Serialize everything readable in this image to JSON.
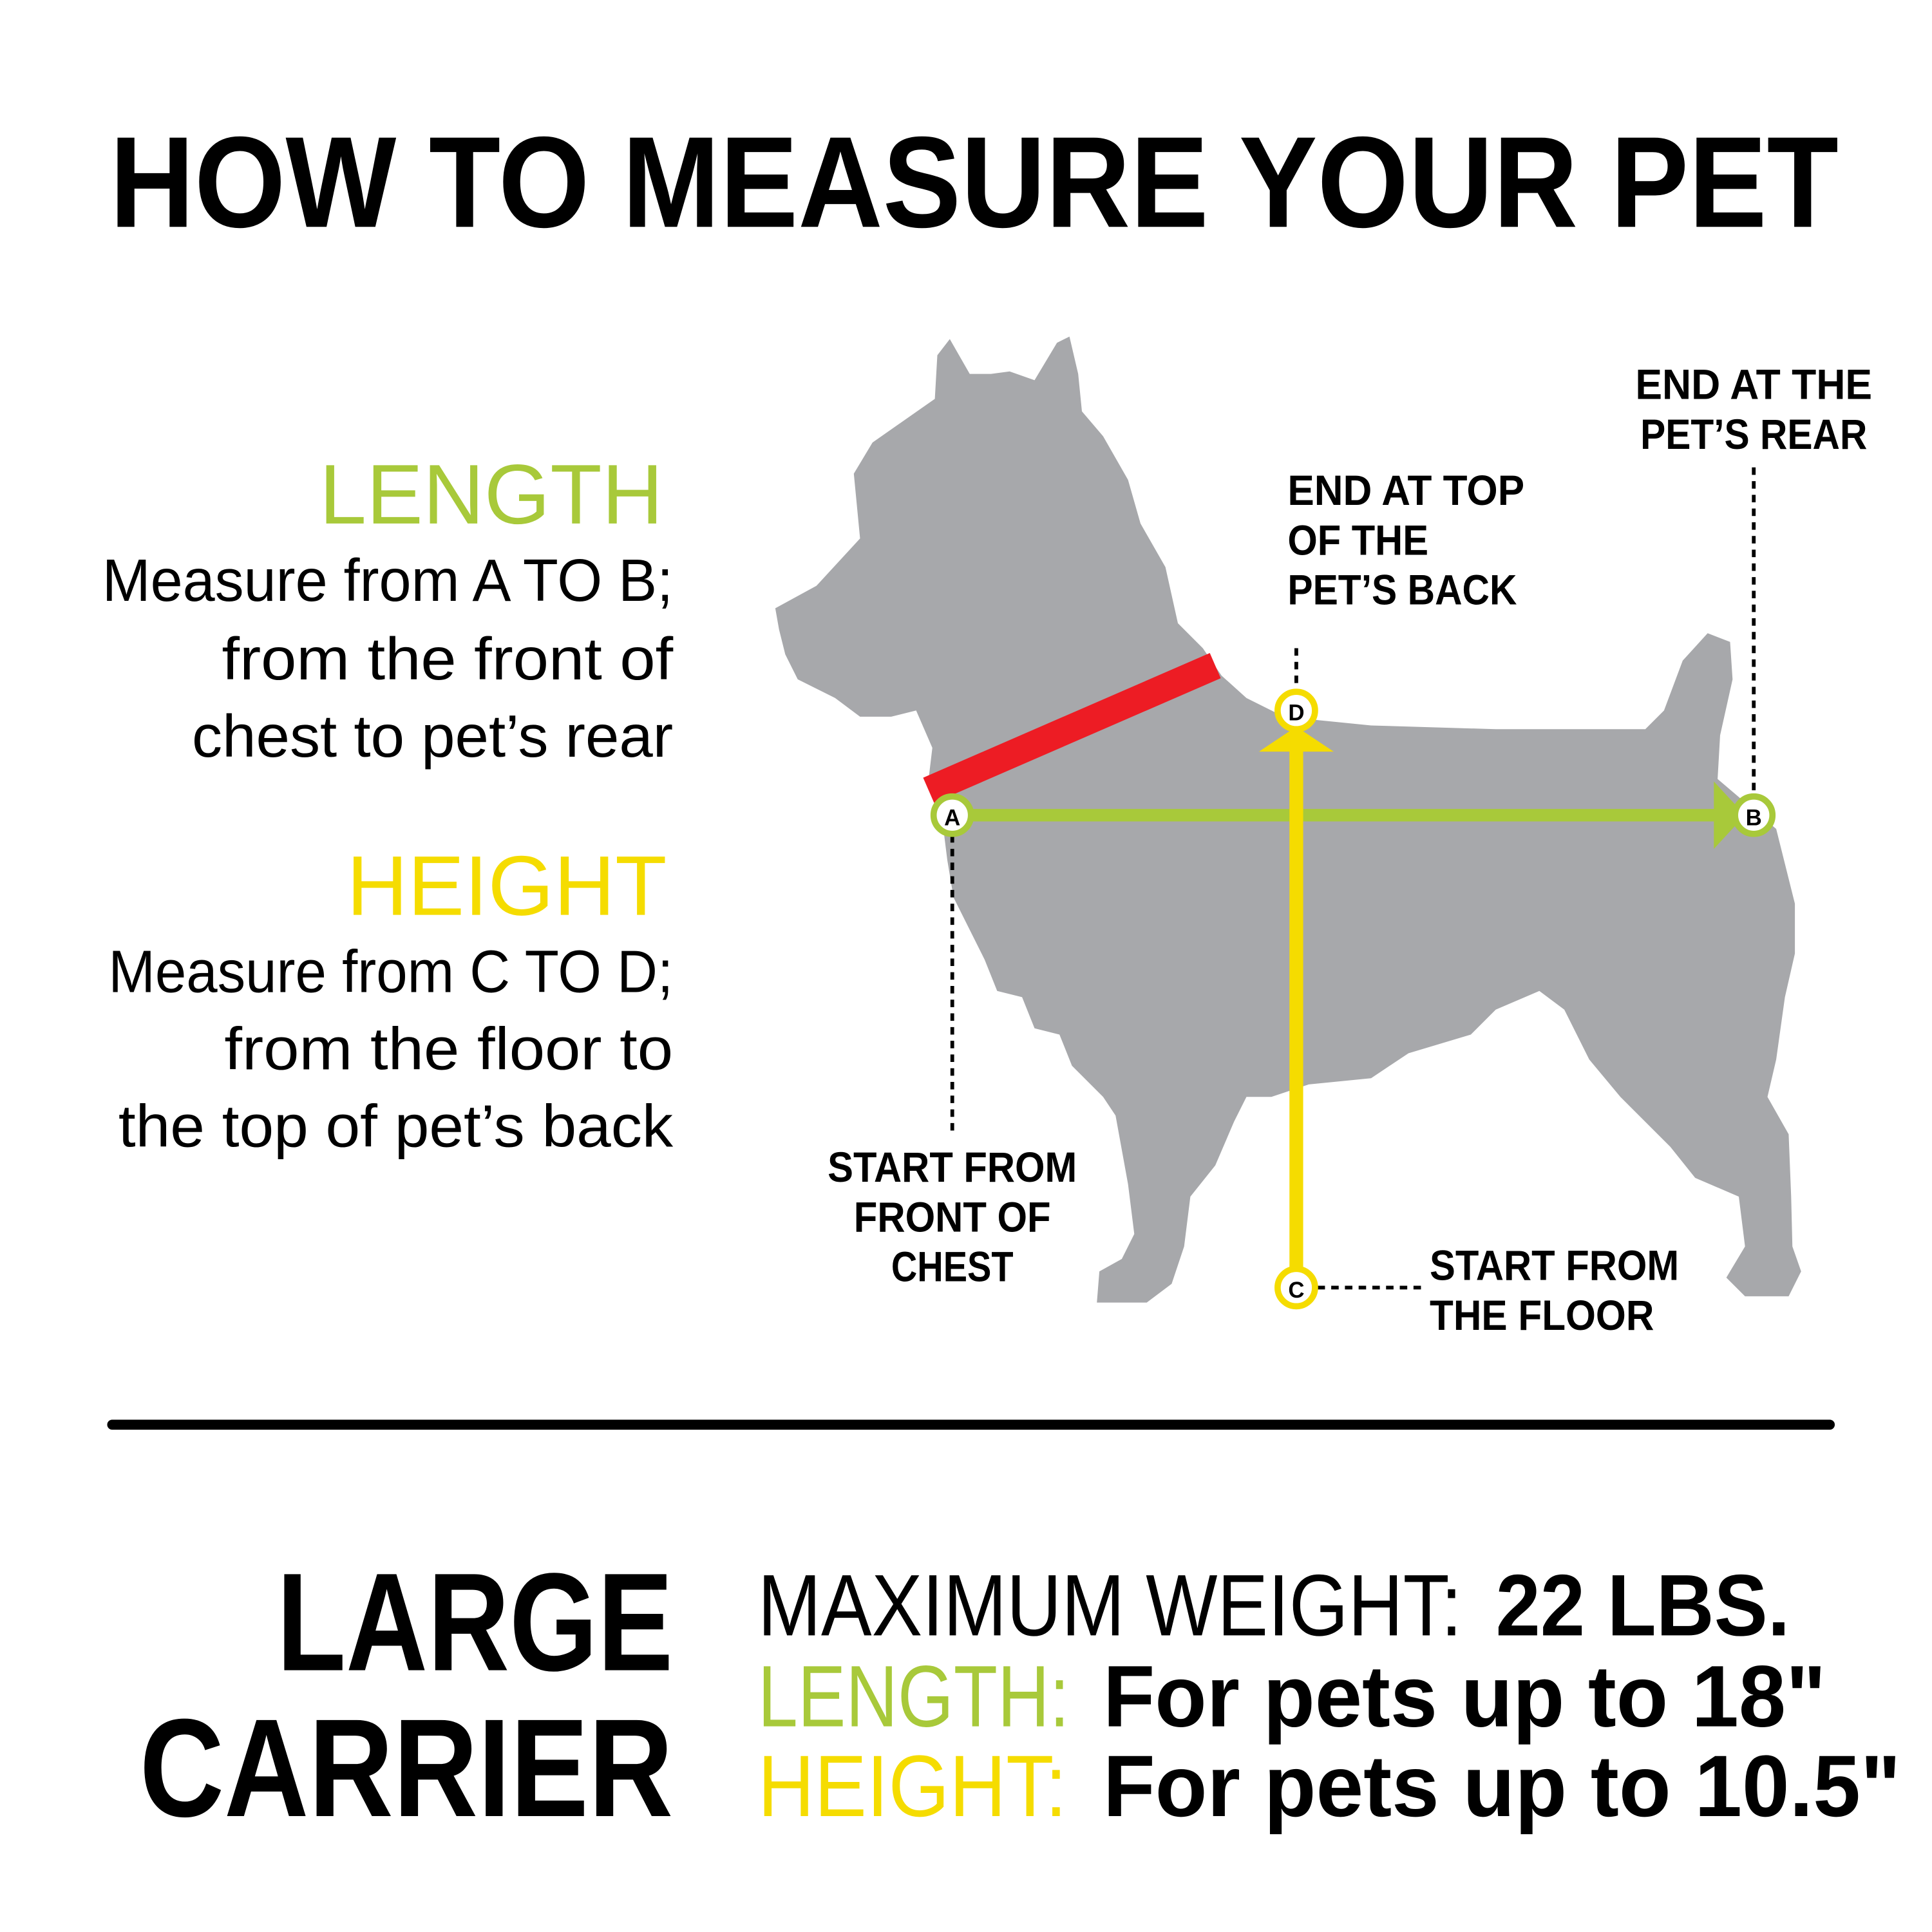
{
  "title": "HOW TO MEASURE YOUR PET",
  "colors": {
    "length": "#a8c93a",
    "height": "#f5dc00",
    "collar": "#ed1c24",
    "dog": "#a7a8ab",
    "text": "#000000"
  },
  "length_section": {
    "heading": "LENGTH",
    "lines": [
      "Measure from A TO B;",
      "from the front of",
      "chest to pet’s rear"
    ]
  },
  "height_section": {
    "heading": "HEIGHT",
    "lines": [
      "Measure from C TO D;",
      "from the floor to",
      "the top of pet’s back"
    ]
  },
  "diagram": {
    "points": {
      "a": "A",
      "b": "B",
      "c": "C",
      "d": "D"
    },
    "label_rear": [
      "END AT THE",
      "PET’S REAR"
    ],
    "label_back": [
      "END AT TOP",
      "OF THE",
      "PET’S BACK"
    ],
    "label_chest": [
      "START FROM",
      "FRONT OF",
      "CHEST"
    ],
    "label_floor": [
      "START FROM",
      "THE FLOOR"
    ]
  },
  "carrier": {
    "size_lines": [
      "LARGE",
      "CARRIER"
    ],
    "weight_label": "MAXIMUM WEIGHT:",
    "weight_value": "22 LBS.",
    "length_label": "LENGTH:",
    "length_value": "For pets up to 18\"",
    "height_label": "HEIGHT:",
    "height_value": "For pets up to 10.5\""
  }
}
